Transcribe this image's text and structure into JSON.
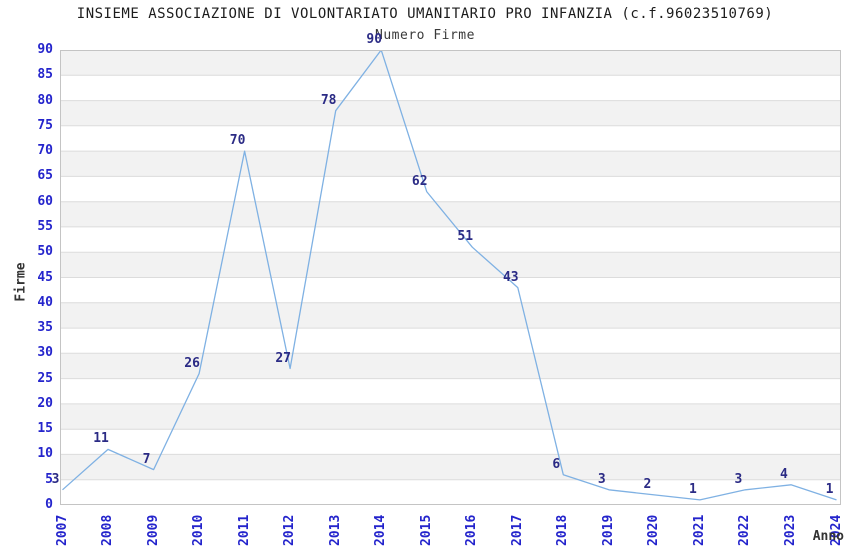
{
  "title": "INSIEME ASSOCIAZIONE DI VOLONTARIATO UMANITARIO PRO INFANZIA (c.f.96023510769)",
  "chart_data": {
    "type": "line",
    "title": "Numero Firme",
    "xlabel": "Anno",
    "ylabel": "Firme",
    "categories": [
      "2007",
      "2008",
      "2009",
      "2010",
      "2011",
      "2012",
      "2013",
      "2014",
      "2015",
      "2016",
      "2017",
      "2018",
      "2019",
      "2020",
      "2021",
      "2022",
      "2023",
      "2024"
    ],
    "values": [
      3,
      11,
      7,
      26,
      70,
      27,
      78,
      90,
      62,
      51,
      43,
      6,
      3,
      2,
      1,
      3,
      4,
      1
    ],
    "ylim": [
      0,
      90
    ],
    "ytick_step": 5,
    "grid": true,
    "legend": "none",
    "point_labels_shown": true,
    "colors": {
      "line": "#7fb1e3",
      "point_label": "#2b2b85",
      "tick_label": "#2424cc",
      "band": "#f2f2f2",
      "gridline": "#dcdcdc",
      "frame": "#c4c4c4",
      "title": "#1c1c1c",
      "axis_title": "#333333"
    }
  }
}
